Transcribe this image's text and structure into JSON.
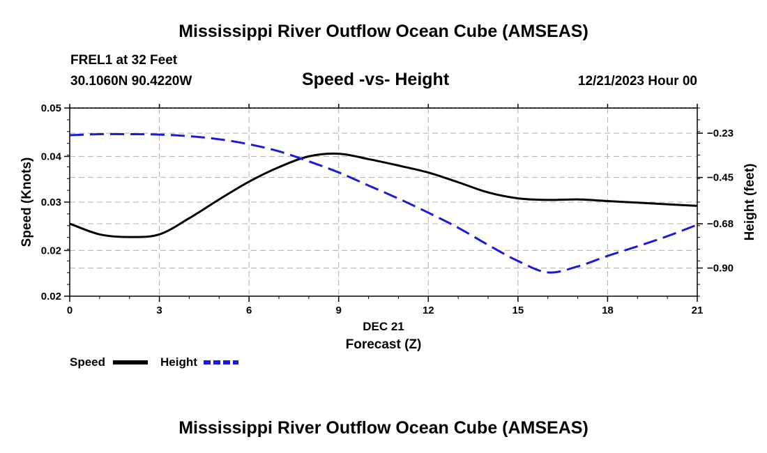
{
  "header": {
    "title": "Mississippi River Outflow Ocean Cube (AMSEAS)",
    "station": "FREL1 at 32 Feet",
    "coordinates": "30.1060N  90.4220W",
    "chart_title": "Speed -vs- Height",
    "datetime": "12/21/2023 Hour 00"
  },
  "footer": {
    "title": "Mississippi River Outflow Ocean Cube (AMSEAS)"
  },
  "chart_data": {
    "type": "line",
    "title": "Speed -vs- Height",
    "xlabel_date": "DEC 21",
    "xlabel": "Forecast (Z)",
    "ylabel": "Speed (Knots)",
    "y2label": "Height (feet)",
    "xlim": [
      0,
      21
    ],
    "ylim": [
      0.015,
      0.05
    ],
    "y2lim": [
      -1.04,
      -0.105
    ],
    "xticks": [
      0,
      3,
      6,
      9,
      12,
      15,
      18,
      21
    ],
    "xtick_labels": [
      "0",
      "3",
      "6",
      "9",
      "12",
      "15",
      "18",
      "21"
    ],
    "yticks": [
      0.015,
      0.0235,
      0.0325,
      0.041,
      0.05
    ],
    "ytick_labels": [
      "0.02",
      "0.02",
      "0.03",
      "0.04",
      "0.05"
    ],
    "y2ticks": [
      -0.23,
      -0.45,
      -0.68,
      -0.9
    ],
    "y2tick_labels": [
      "−0.23",
      "−0.45",
      "−0.68",
      "−0.90"
    ],
    "grid": true,
    "legend_position": "bottom-left",
    "series": [
      {
        "name": "Speed",
        "axis": "left",
        "color": "#000000",
        "style": "solid",
        "x": [
          0,
          1,
          2,
          3,
          4,
          5,
          6,
          7,
          8,
          9,
          10,
          11,
          12,
          13,
          14,
          15,
          16,
          17,
          18,
          19,
          20,
          21
        ],
        "values": [
          0.0285,
          0.0265,
          0.026,
          0.0265,
          0.0295,
          0.033,
          0.0363,
          0.039,
          0.041,
          0.0415,
          0.0405,
          0.0393,
          0.038,
          0.0362,
          0.0343,
          0.0332,
          0.0329,
          0.033,
          0.0327,
          0.0324,
          0.0321,
          0.0318
        ]
      },
      {
        "name": "Height",
        "axis": "right",
        "color": "#1a1adb",
        "style": "dashed",
        "x": [
          0,
          1,
          2,
          3,
          4,
          5,
          6,
          7,
          8,
          9,
          10,
          11,
          12,
          13,
          14,
          15,
          16,
          17,
          18,
          19,
          20,
          21
        ],
        "values": [
          -0.24,
          -0.235,
          -0.235,
          -0.237,
          -0.245,
          -0.26,
          -0.285,
          -0.32,
          -0.37,
          -0.425,
          -0.49,
          -0.555,
          -0.625,
          -0.7,
          -0.785,
          -0.865,
          -0.922,
          -0.892,
          -0.84,
          -0.792,
          -0.742,
          -0.685
        ]
      }
    ]
  }
}
